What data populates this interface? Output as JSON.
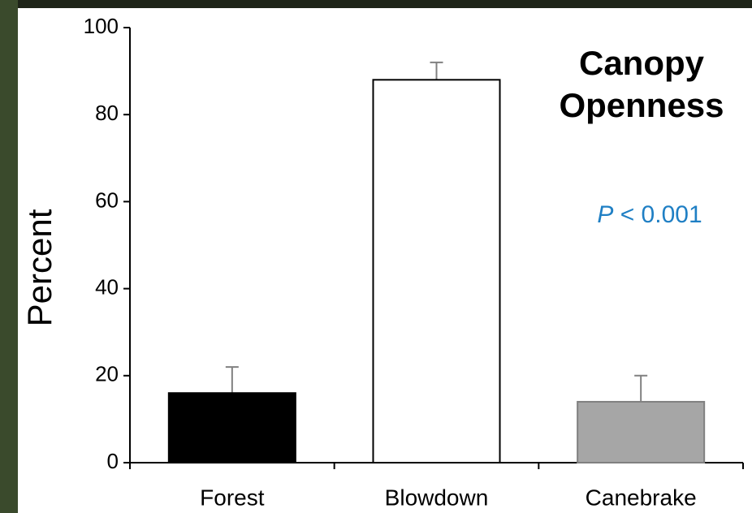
{
  "chart_data": {
    "type": "bar",
    "title": "Canopy Openness",
    "y_label": "Percent",
    "annotation": {
      "symbol": "P",
      "text": "< 0.001"
    },
    "categories": [
      "Forest",
      "Blowdown",
      "Canebrake"
    ],
    "values": [
      16,
      88,
      14
    ],
    "errors": [
      6,
      4,
      6
    ],
    "colors": [
      "#000000",
      "#ffffff",
      "#a6a6a6"
    ],
    "ylim": [
      0,
      100
    ],
    "yticks": [
      0,
      20,
      40,
      60,
      80,
      100
    ],
    "grid": false
  }
}
